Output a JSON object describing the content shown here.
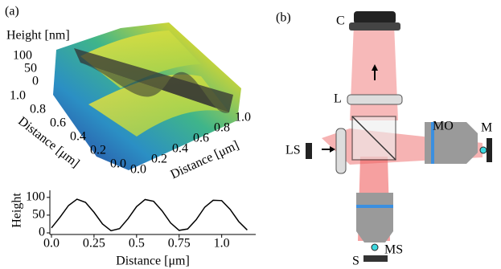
{
  "panel_a": {
    "label": "(a)",
    "surface": {
      "z_label": "Height [nm]",
      "z_ticks": [
        "100",
        "50",
        "0"
      ],
      "left_axis_label": "Distance [μm]",
      "left_ticks": [
        "1.0",
        "0.8",
        "0.6",
        "0.4",
        "0.2",
        "0.0"
      ],
      "right_axis_label": "Distance [μm]",
      "right_ticks": [
        "0.0",
        "0.2",
        "0.4",
        "0.6",
        "0.8",
        "1.0"
      ]
    },
    "chart_data": {
      "type": "line",
      "ylabel": "Height",
      "xlabel": "Distance [μm]",
      "x": [
        0,
        0.05,
        0.1,
        0.15,
        0.2,
        0.25,
        0.3,
        0.35,
        0.4,
        0.45,
        0.5,
        0.55,
        0.6,
        0.65,
        0.7,
        0.75,
        0.8,
        0.85,
        0.9,
        0.95,
        1.0,
        1.05,
        1.1,
        1.15
      ],
      "values": [
        14,
        44,
        77,
        95,
        86,
        58,
        25,
        6,
        12,
        40,
        74,
        94,
        89,
        62,
        28,
        7,
        11,
        37,
        72,
        92,
        91,
        66,
        32,
        8
      ],
      "color": "#000000",
      "xlim": [
        0,
        1.2
      ],
      "ylim": [
        0,
        120
      ],
      "xticks": [
        {
          "value": 0,
          "label": "0.0"
        },
        0.25,
        0.5,
        0.75,
        {
          "value": 1,
          "label": "1.0"
        }
      ],
      "yticks": [
        0,
        50,
        100
      ]
    }
  },
  "panel_b": {
    "label": "(b)",
    "labels": {
      "camera": "C",
      "lens": "L",
      "light_source": "LS",
      "microscope_objective": "MO",
      "mirror": "M",
      "sample_objective": "MS",
      "sample": "S"
    }
  }
}
